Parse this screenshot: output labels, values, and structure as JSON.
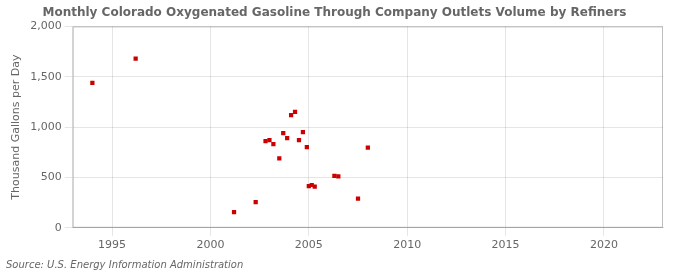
{
  "chart_data": {
    "type": "scatter",
    "title": "Monthly Colorado Oxygenated Gasoline Through Company Outlets Volume by Refiners",
    "ylabel": "Thousand Gallons per Day",
    "annotations": [
      "Source: U.S. Energy Information Administration"
    ],
    "x": [
      1994.0,
      1996.2,
      2001.2,
      2002.3,
      2002.8,
      2003.0,
      2003.2,
      2003.5,
      2003.7,
      2003.9,
      2004.1,
      2004.3,
      2004.5,
      2004.7,
      2004.9,
      2005.0,
      2005.15,
      2005.3,
      2006.3,
      2006.5,
      2007.5,
      2008.0
    ],
    "values": [
      1440,
      1680,
      155,
      255,
      860,
      870,
      830,
      690,
      940,
      890,
      1120,
      1150,
      870,
      950,
      800,
      415,
      425,
      410,
      515,
      510,
      290,
      795
    ],
    "color": "#cc0000",
    "marker": "square",
    "xlim": [
      1993,
      2023
    ],
    "xticks": [
      1995,
      2000,
      2005,
      2010,
      2015,
      2020
    ],
    "ylim": [
      0,
      2000
    ],
    "yticks": [
      0,
      500,
      {
        "value": 1000,
        "label": "1,000"
      },
      {
        "value": 1500,
        "label": "1,500"
      },
      {
        "value": 2000,
        "label": "2,000"
      }
    ],
    "grid": true
  }
}
